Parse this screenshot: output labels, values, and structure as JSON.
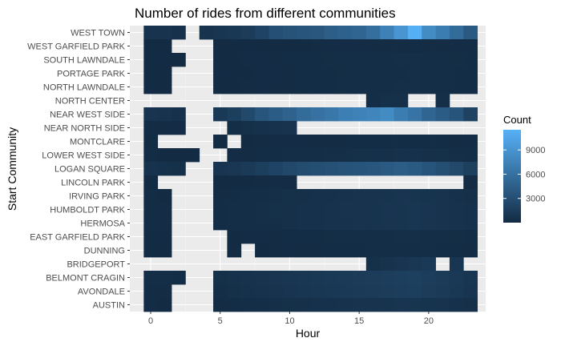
{
  "chart_data": {
    "type": "heatmap",
    "title": "Number of rides from different communities",
    "xlabel": "Hour",
    "ylabel": "Start Community",
    "x_ticks": [
      0,
      5,
      10,
      15,
      20
    ],
    "xlim": [
      -1.5,
      24.1
    ],
    "hours": [
      0,
      1,
      2,
      3,
      4,
      5,
      6,
      7,
      8,
      9,
      10,
      11,
      12,
      13,
      14,
      15,
      16,
      17,
      18,
      19,
      20,
      21,
      22,
      23
    ],
    "communities": [
      "WEST TOWN",
      "WEST GARFIELD PARK",
      "SOUTH LAWNDALE",
      "PORTAGE PARK",
      "NORTH LAWNDALE",
      "NORTH CENTER",
      "NEAR WEST SIDE",
      "NEAR NORTH SIDE",
      "MONTCLARE",
      "LOWER WEST SIDE",
      "LOGAN SQUARE",
      "LINCOLN PARK",
      "IRVING PARK",
      "HUMBOLDT PARK",
      "HERMOSA",
      "EAST GARFIELD PARK",
      "DUNNING",
      "BRIDGEPORT",
      "BELMONT CRAGIN",
      "AVONDALE",
      "AUSTIN"
    ],
    "legend": {
      "title": "Count",
      "ticks": [
        3000,
        6000,
        9000
      ],
      "min": 0,
      "max": 11500,
      "low_color": "#132B43",
      "high_color": "#56B1F7"
    },
    "grid": true,
    "counts": [
      [
        700,
        650,
        500,
        null,
        700,
        900,
        1100,
        1500,
        2100,
        3100,
        3400,
        3600,
        3800,
        4400,
        4700,
        5000,
        5800,
        7400,
        9100,
        11300,
        8200,
        7000,
        5500,
        4000
      ],
      [
        10,
        8,
        null,
        null,
        null,
        20,
        30,
        40,
        50,
        60,
        70,
        80,
        90,
        100,
        110,
        120,
        130,
        140,
        150,
        160,
        150,
        140,
        120,
        100
      ],
      [
        50,
        40,
        30,
        null,
        null,
        60,
        80,
        100,
        120,
        140,
        160,
        180,
        200,
        220,
        240,
        260,
        280,
        300,
        320,
        340,
        300,
        260,
        220,
        180
      ],
      [
        30,
        20,
        null,
        null,
        null,
        40,
        60,
        80,
        100,
        120,
        140,
        160,
        180,
        200,
        220,
        240,
        260,
        280,
        300,
        320,
        280,
        240,
        200,
        160
      ],
      [
        40,
        30,
        null,
        null,
        null,
        50,
        70,
        90,
        110,
        130,
        150,
        170,
        190,
        210,
        230,
        250,
        270,
        290,
        310,
        330,
        290,
        250,
        210,
        170
      ],
      [
        null,
        null,
        null,
        null,
        null,
        null,
        null,
        null,
        null,
        null,
        null,
        null,
        null,
        null,
        null,
        null,
        300,
        400,
        450,
        null,
        null,
        350,
        null,
        null
      ],
      [
        800,
        700,
        500,
        null,
        null,
        1200,
        1700,
        2500,
        3600,
        4200,
        4800,
        5500,
        6000,
        6500,
        7200,
        7500,
        7800,
        8200,
        7000,
        6200,
        5000,
        4200,
        3500,
        2000
      ],
      [
        200,
        150,
        100,
        null,
        null,
        null,
        300,
        400,
        500,
        600,
        700,
        null,
        null,
        null,
        null,
        null,
        null,
        null,
        null,
        null,
        null,
        null,
        null,
        null
      ],
      [
        50,
        null,
        null,
        null,
        null,
        60,
        null,
        80,
        90,
        100,
        110,
        120,
        130,
        140,
        150,
        160,
        170,
        180,
        190,
        200,
        180,
        160,
        140,
        120
      ],
      [
        100,
        80,
        60,
        50,
        null,
        null,
        120,
        150,
        180,
        210,
        240,
        270,
        300,
        330,
        360,
        390,
        420,
        450,
        480,
        510,
        450,
        400,
        350,
        300
      ],
      [
        600,
        500,
        400,
        null,
        null,
        800,
        1000,
        1300,
        1700,
        2100,
        2500,
        2800,
        3000,
        3200,
        3400,
        3500,
        3700,
        4000,
        4300,
        4000,
        3500,
        3000,
        2500,
        1800
      ],
      [
        50,
        null,
        null,
        null,
        null,
        60,
        70,
        80,
        90,
        100,
        110,
        null,
        null,
        null,
        null,
        null,
        null,
        null,
        null,
        null,
        null,
        null,
        null,
        150
      ],
      [
        100,
        80,
        null,
        null,
        null,
        150,
        200,
        250,
        300,
        350,
        400,
        450,
        500,
        550,
        600,
        650,
        700,
        750,
        800,
        850,
        750,
        650,
        550,
        450
      ],
      [
        150,
        120,
        null,
        null,
        null,
        200,
        250,
        300,
        350,
        400,
        450,
        500,
        550,
        600,
        650,
        700,
        750,
        800,
        850,
        900,
        800,
        700,
        600,
        500
      ],
      [
        120,
        100,
        null,
        null,
        null,
        180,
        230,
        280,
        330,
        380,
        430,
        480,
        530,
        580,
        630,
        680,
        730,
        780,
        830,
        880,
        780,
        680,
        580,
        480
      ],
      [
        50,
        40,
        null,
        null,
        null,
        null,
        80,
        100,
        120,
        140,
        160,
        180,
        200,
        220,
        240,
        260,
        280,
        300,
        320,
        340,
        300,
        260,
        220,
        180
      ],
      [
        30,
        20,
        null,
        null,
        null,
        null,
        50,
        null,
        70,
        90,
        110,
        130,
        150,
        170,
        190,
        210,
        230,
        250,
        270,
        290,
        250,
        210,
        170,
        130
      ],
      [
        null,
        null,
        null,
        null,
        null,
        null,
        null,
        null,
        null,
        null,
        null,
        null,
        null,
        null,
        null,
        null,
        400,
        600,
        800,
        1000,
        1200,
        null,
        900,
        null
      ],
      [
        300,
        250,
        200,
        null,
        null,
        400,
        500,
        600,
        700,
        800,
        900,
        1000,
        1100,
        1200,
        1300,
        1400,
        1500,
        1600,
        1700,
        1800,
        1600,
        1400,
        1200,
        900
      ],
      [
        200,
        150,
        null,
        null,
        null,
        300,
        400,
        500,
        600,
        700,
        800,
        900,
        1000,
        1100,
        1200,
        1300,
        1400,
        1500,
        1600,
        1700,
        1500,
        1300,
        1100,
        800
      ],
      [
        100,
        80,
        null,
        null,
        null,
        150,
        200,
        250,
        300,
        350,
        400,
        450,
        500,
        550,
        600,
        650,
        700,
        750,
        800,
        850,
        750,
        650,
        550,
        450
      ]
    ]
  }
}
